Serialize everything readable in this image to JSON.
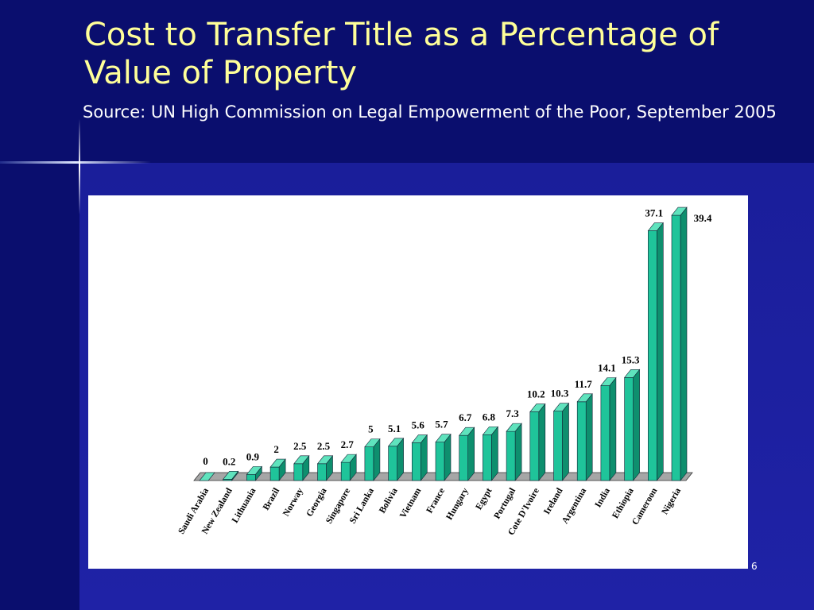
{
  "slide": {
    "title": "Cost to Transfer Title as a Percentage of Value of Property",
    "subtitle": "Source: UN High Commission on Legal Empowerment of the Poor, September 2005",
    "page_number": "6"
  },
  "colors": {
    "background": "#141a8c",
    "title": "#ffff99",
    "bar_front": "#1fc49a",
    "bar_top": "#5fe3bd",
    "bar_side": "#0e8f6e"
  },
  "chart_data": {
    "type": "bar",
    "title": "",
    "xlabel": "",
    "ylabel": "",
    "ylim": [
      0,
      40
    ],
    "grid": false,
    "categories": [
      "Saudi Arabia",
      "New Zealand",
      "Lithuania",
      "Brazil",
      "Norway",
      "Georgia",
      "Singapore",
      "Sri Lanka",
      "Bolivia",
      "Vietnam",
      "France",
      "Hungary",
      "Egypt",
      "Portugal",
      "Cote D'Ivoire",
      "Ireland",
      "Argentina",
      "India",
      "Ethiopia",
      "Cameroon",
      "Nigeria"
    ],
    "values": [
      0,
      0.2,
      0.9,
      2,
      2.5,
      2.5,
      2.7,
      5,
      5.1,
      5.6,
      5.7,
      6.7,
      6.8,
      7.3,
      10.2,
      10.3,
      11.7,
      14.1,
      15.3,
      37.1,
      39.4
    ],
    "value_labels": [
      "0",
      "0.2",
      "0.9",
      "2",
      "2.5",
      "2.5",
      "2.7",
      "5",
      "5.1",
      "5.6",
      "5.7",
      "6.7",
      "6.8",
      "7.3",
      "10.2",
      "10.3",
      "11.7",
      "14.1",
      "15.3",
      "37.1",
      "39.4"
    ]
  }
}
